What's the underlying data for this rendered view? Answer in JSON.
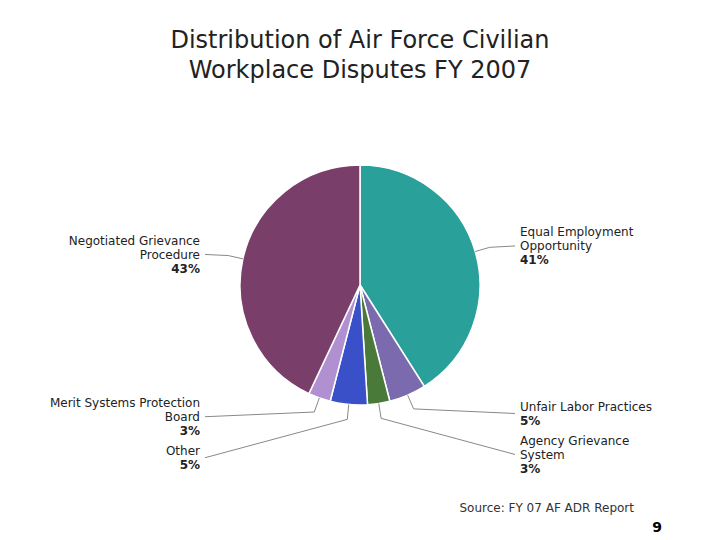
{
  "chart_data": {
    "type": "pie",
    "title": "Distribution of Air Force Civilian\nWorkplace Disputes FY 2007",
    "categories": [
      "Equal Employment\nOpportunity",
      "Unfair Labor Practices",
      "Agency Grievance\nSystem",
      "Other",
      "Merit Systems Protection\nBoard",
      "Negotiated Grievance\nProcedure"
    ],
    "values": [
      41,
      5,
      3,
      5,
      3,
      43
    ],
    "value_labels": [
      "41%",
      "5%",
      "3%",
      "5%",
      "3%",
      "43%"
    ],
    "colors": [
      "#2AA09A",
      "#7B6BAE",
      "#4A7A3A",
      "#3A50C8",
      "#B090D0",
      "#7A3E6A"
    ],
    "data_labels": true,
    "annotations": [
      "Source: FY 07 AF ADR Report",
      "9"
    ]
  }
}
